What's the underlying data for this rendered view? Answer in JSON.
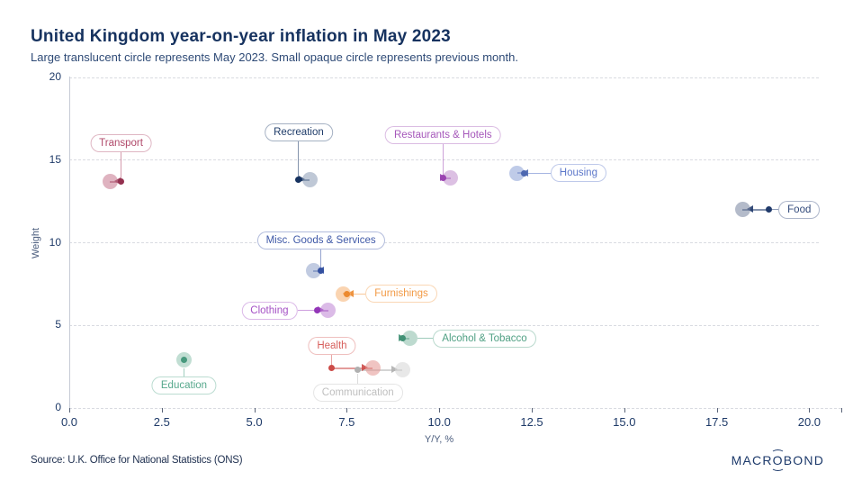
{
  "header": {
    "title": "United Kingdom year-on-year inflation in May 2023",
    "subtitle": "Large translucent circle represents May 2023. Small opaque circle represents previous month."
  },
  "footer": {
    "source": "Source: U.K. Office for National Statistics (ONS)",
    "logo_pre": "MACR",
    "logo_o": "O",
    "logo_post": "BOND"
  },
  "chart_data": {
    "type": "scatter",
    "title": "United Kingdom year-on-year inflation in May 2023",
    "note": "Large translucent circle represents May 2023. Small opaque circle represents previous month.",
    "xlabel": "Y/Y, %",
    "ylabel": "Weight",
    "xlim": [
      0,
      20
    ],
    "ylim": [
      0,
      20
    ],
    "x_ticks": [
      0,
      2.5,
      5,
      7.5,
      10,
      12.5,
      15,
      17.5,
      20
    ],
    "y_ticks": [
      0,
      5,
      10,
      15,
      20
    ],
    "grid": "horizontal-dashed",
    "series": [
      {
        "name": "Transport",
        "prev": 1.4,
        "may": 1.1,
        "weight": 13.7,
        "color": "#b0496a",
        "dot": "#93304f",
        "fill": "#c4758c",
        "label": {
          "side": "above",
          "anchor": "prev",
          "gap": 33
        }
      },
      {
        "name": "Recreation",
        "prev": 6.2,
        "may": 6.5,
        "weight": 13.8,
        "color": "#1f3c69",
        "dot": "#16325f",
        "fill": "#8b9ab5",
        "label": {
          "side": "above",
          "anchor": "prev",
          "gap": 43
        }
      },
      {
        "name": "Restaurants & Hotels",
        "prev": 10.1,
        "may": 10.3,
        "weight": 13.9,
        "color": "#a557ba",
        "dot": "#9a43b1",
        "fill": "#c08ccc",
        "label": {
          "side": "above",
          "anchor": "prev",
          "gap": 38
        }
      },
      {
        "name": "Housing",
        "prev": 12.3,
        "may": 12.1,
        "weight": 14.2,
        "color": "#5d78ca",
        "dot": "#4d68b0",
        "fill": "#8ba0d6",
        "label": {
          "side": "right",
          "anchor": "prev",
          "gap": 29
        }
      },
      {
        "name": "Food",
        "prev": 18.9,
        "may": 18.2,
        "weight": 12.0,
        "color": "#31497a",
        "dot": "#203a6b",
        "fill": "#76849f",
        "label": {
          "side": "right",
          "anchor": "prev",
          "gap": 11
        }
      },
      {
        "name": "Misc. Goods & Services",
        "prev": 6.8,
        "may": 6.6,
        "weight": 8.3,
        "color": "#3e58a7",
        "dot": "#3350a0",
        "fill": "#8ea0c9",
        "label": {
          "side": "above",
          "anchor": "prev",
          "gap": 24
        }
      },
      {
        "name": "Furnishings",
        "prev": 7.5,
        "may": 7.4,
        "weight": 6.9,
        "color": "#f29a45",
        "dot": "#ec8a2f",
        "fill": "#f5b171",
        "label": {
          "side": "right",
          "anchor": "may",
          "gap": 25
        }
      },
      {
        "name": "Clothing",
        "prev": 6.7,
        "may": 7.0,
        "weight": 5.9,
        "color": "#a551c5",
        "dot": "#9336b8",
        "fill": "#bd84d3",
        "label": {
          "side": "left",
          "anchor": "prev",
          "gap": 22
        }
      },
      {
        "name": "Alcohol & Tobacco",
        "prev": 9.0,
        "may": 9.2,
        "weight": 4.2,
        "color": "#4fa083",
        "dot": "#419175",
        "fill": "#86bca7",
        "label": {
          "side": "right",
          "anchor": "may",
          "gap": 26
        }
      },
      {
        "name": "Health",
        "prev": 7.1,
        "may": 8.2,
        "weight": 2.4,
        "color": "#d75f5c",
        "dot": "#cc4b48",
        "fill": "#e39390",
        "label": {
          "side": "above",
          "anchor": "prev",
          "gap": 15
        }
      },
      {
        "name": "Communication",
        "prev": 7.8,
        "may": 9.0,
        "weight": 2.3,
        "color": "#bfbfbf",
        "dot": "#b0b0b0",
        "fill": "#d6d6d6",
        "label": {
          "side": "below",
          "anchor": "prev",
          "gap": 15
        }
      },
      {
        "name": "Education",
        "prev": 3.1,
        "may": 3.1,
        "weight": 2.9,
        "color": "#56a88c",
        "dot": "#47997d",
        "fill": "#8ec2ae",
        "label": {
          "side": "below",
          "anchor": "may",
          "gap": 18
        }
      }
    ]
  }
}
